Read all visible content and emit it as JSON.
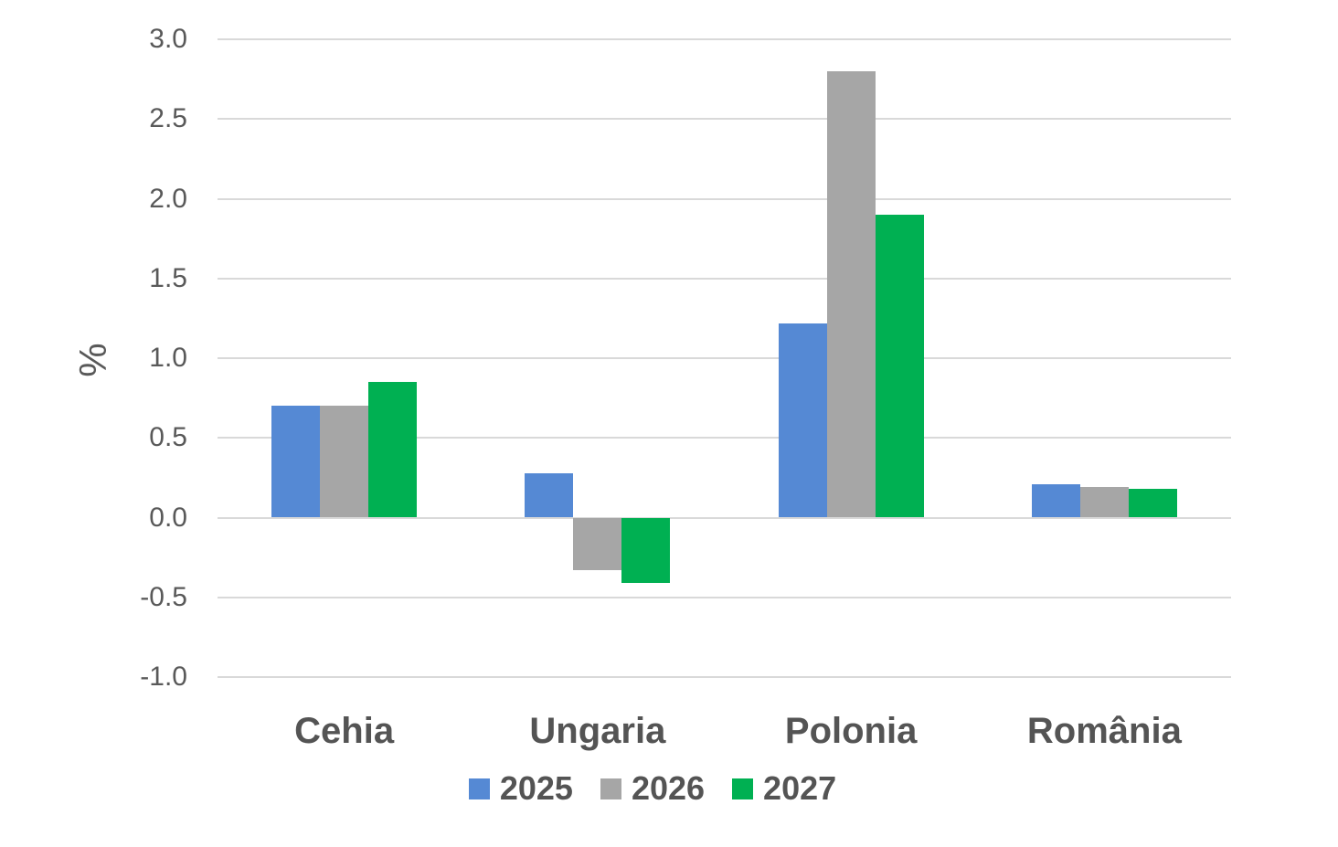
{
  "chart_data": {
    "type": "bar",
    "title": "",
    "xlabel": "",
    "ylabel": "%",
    "categories": [
      "Cehia",
      "Ungaria",
      "Polonia",
      "România"
    ],
    "series": [
      {
        "name": "2025",
        "color": "#5589d4",
        "values": [
          0.7,
          0.28,
          1.22,
          0.21
        ]
      },
      {
        "name": "2026",
        "color": "#a6a6a6",
        "values": [
          0.7,
          -0.33,
          2.8,
          0.19
        ]
      },
      {
        "name": "2027",
        "color": "#00b052",
        "values": [
          0.85,
          -0.41,
          1.9,
          0.18
        ]
      }
    ],
    "ylim": [
      -1.0,
      3.0
    ],
    "ytick_step": 0.5,
    "ytick_labels": [
      "3.0",
      "2.5",
      "2.0",
      "1.5",
      "1.0",
      "0.5",
      "0.0",
      "-0.5",
      "-1.0"
    ],
    "grid": "horizontal",
    "gridline_color": "#d9d9d9",
    "background_color": "#ffffff",
    "axis_text_color": "#595959",
    "label_text_color": "#545454",
    "legend_position": "bottom"
  }
}
